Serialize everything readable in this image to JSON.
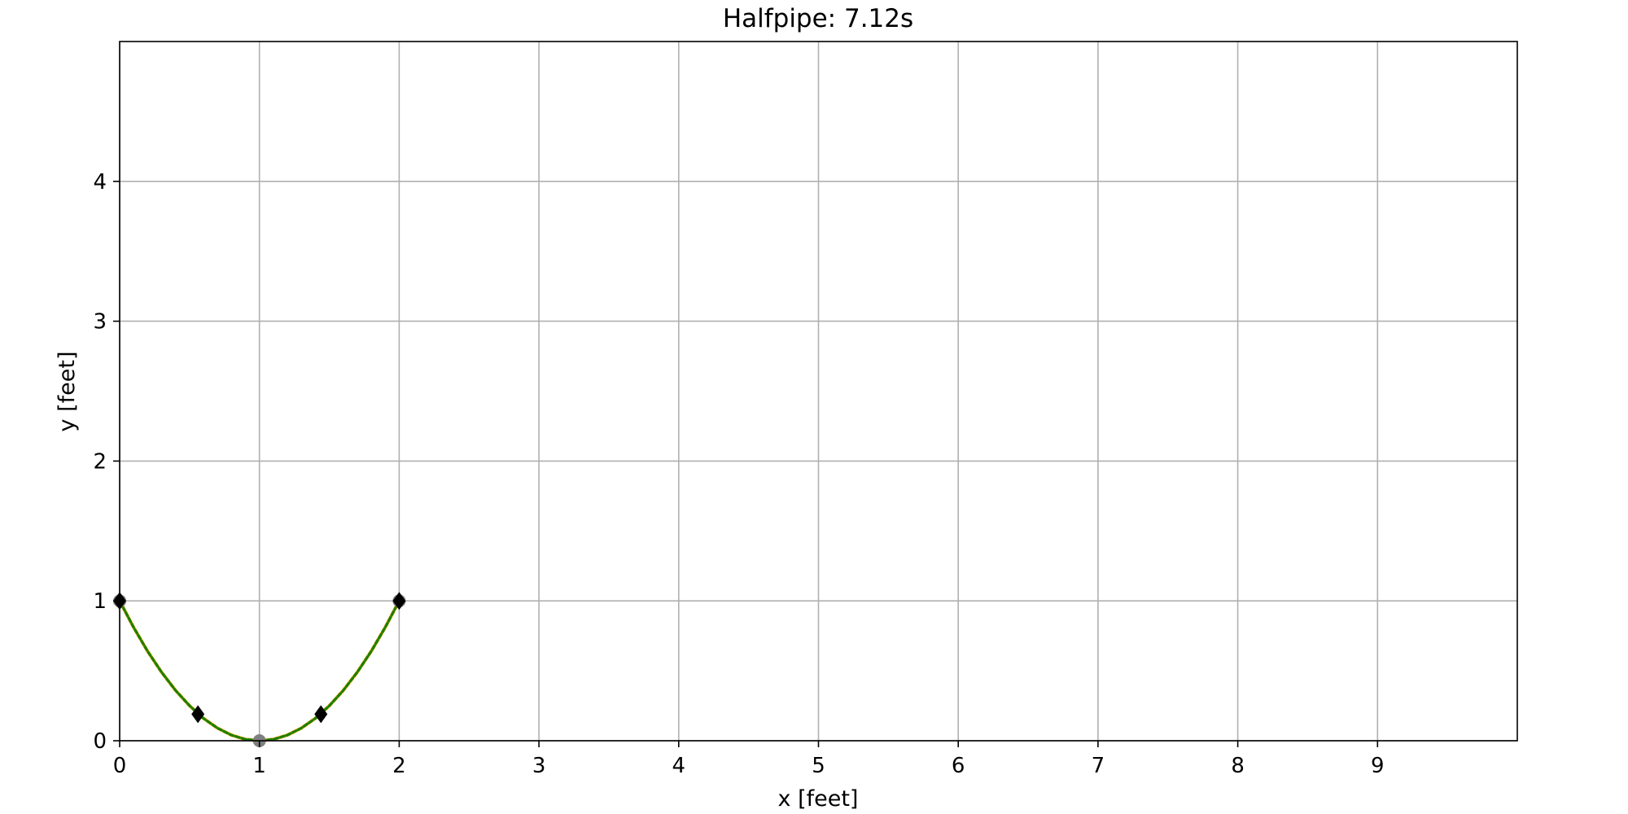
{
  "chart_data": {
    "type": "line",
    "title": "Halfpipe: 7.12s",
    "xlabel": "x [feet]",
    "ylabel": "y [feet]",
    "xlim": [
      0,
      10
    ],
    "ylim": [
      0,
      5
    ],
    "xticks": [
      0,
      1,
      2,
      3,
      4,
      5,
      6,
      7,
      8,
      9
    ],
    "yticks": [
      0,
      1,
      2,
      3,
      4
    ],
    "grid": true,
    "series": [
      {
        "style": "solid",
        "color": "#ffa500",
        "x": [
          0,
          0.1,
          0.2,
          0.3,
          0.4,
          0.5,
          0.6,
          0.7,
          0.8,
          0.9,
          1.0,
          1.1,
          1.2,
          1.3,
          1.4,
          1.5,
          1.6,
          1.7,
          1.8,
          1.9,
          2.0
        ],
        "y": [
          1.0,
          0.81,
          0.64,
          0.49,
          0.36,
          0.25,
          0.16,
          0.09,
          0.04,
          0.01,
          0.0,
          0.01,
          0.04,
          0.09,
          0.16,
          0.25,
          0.36,
          0.49,
          0.64,
          0.81,
          1.0
        ]
      },
      {
        "style": "dashed",
        "color": "#1a8000",
        "x": [
          0,
          0.1,
          0.2,
          0.3,
          0.4,
          0.5,
          0.6,
          0.7,
          0.8,
          0.9,
          1.0,
          1.1,
          1.2,
          1.3,
          1.4,
          1.5,
          1.6,
          1.7,
          1.8,
          1.9,
          2.0
        ],
        "y": [
          1.0,
          0.81,
          0.64,
          0.49,
          0.36,
          0.25,
          0.16,
          0.09,
          0.04,
          0.01,
          0.0,
          0.01,
          0.04,
          0.09,
          0.16,
          0.25,
          0.36,
          0.49,
          0.64,
          0.81,
          1.0
        ]
      }
    ],
    "points": [
      {
        "marker": "circle",
        "color": "#808080",
        "x": 0,
        "y": 1.0
      },
      {
        "marker": "circle",
        "color": "#808080",
        "x": 1.0,
        "y": 0.0
      },
      {
        "marker": "circle",
        "color": "#808080",
        "x": 2.0,
        "y": 1.0
      },
      {
        "marker": "diamond",
        "color": "#000000",
        "x": 0.0,
        "y": 1.0
      },
      {
        "marker": "diamond",
        "color": "#000000",
        "x": 0.56,
        "y": 0.19
      },
      {
        "marker": "diamond",
        "color": "#000000",
        "x": 1.44,
        "y": 0.19
      },
      {
        "marker": "diamond",
        "color": "#000000",
        "x": 2.0,
        "y": 1.0
      }
    ],
    "colors": {
      "grid": "#b0b0b0",
      "axes": "#000000"
    }
  }
}
